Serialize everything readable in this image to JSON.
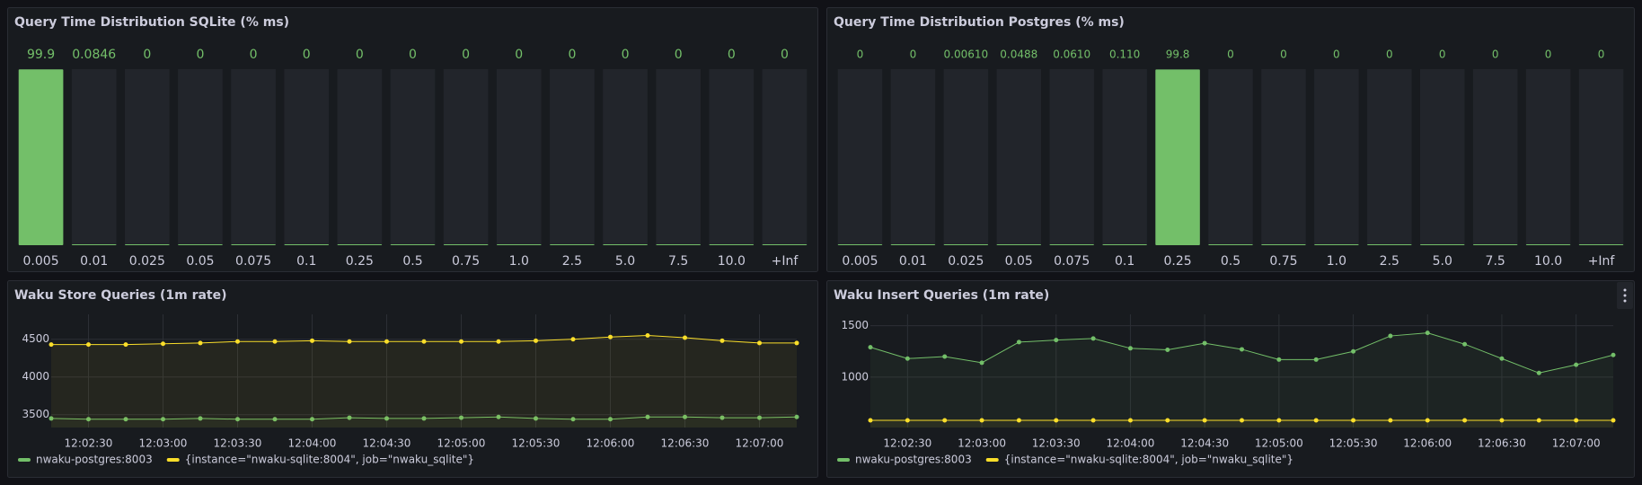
{
  "chart_data": [
    {
      "type": "bar",
      "title": "Query Time Distribution SQLite (% ms)",
      "categories": [
        "0.005",
        "0.01",
        "0.025",
        "0.05",
        "0.075",
        "0.1",
        "0.25",
        "0.5",
        "0.75",
        "1.0",
        "2.5",
        "5.0",
        "7.5",
        "10.0",
        "+Inf"
      ],
      "values": [
        99.9,
        0.0846,
        0,
        0,
        0,
        0,
        0,
        0,
        0,
        0,
        0,
        0,
        0,
        0,
        0
      ],
      "color": "#73bf69",
      "ylim": [
        0,
        100
      ]
    },
    {
      "type": "bar",
      "title": "Query Time Distribution Postgres (% ms)",
      "categories": [
        "0.005",
        "0.01",
        "0.025",
        "0.05",
        "0.075",
        "0.1",
        "0.25",
        "0.5",
        "0.75",
        "1.0",
        "2.5",
        "5.0",
        "7.5",
        "10.0",
        "+Inf"
      ],
      "values": [
        0,
        0,
        0.0061,
        0.0488,
        0.061,
        0.11,
        99.8,
        0,
        0,
        0,
        0,
        0,
        0,
        0,
        0
      ],
      "value_labels": [
        "0",
        "0",
        "0.00610",
        "0.0488",
        "0.0610",
        "0.110",
        "99.8",
        "0",
        "0",
        "0",
        "0",
        "0",
        "0",
        "0",
        "0"
      ],
      "color": "#73bf69",
      "ylim": [
        0,
        100
      ]
    },
    {
      "type": "line",
      "title": "Waku Store Queries (1m rate)",
      "x": [
        "12:02:15",
        "12:02:30",
        "12:02:45",
        "12:03:00",
        "12:03:15",
        "12:03:30",
        "12:03:45",
        "12:04:00",
        "12:04:15",
        "12:04:30",
        "12:04:45",
        "12:05:00",
        "12:05:15",
        "12:05:30",
        "12:05:45",
        "12:06:00",
        "12:06:15",
        "12:06:30",
        "12:06:45",
        "12:07:00",
        "12:07:15"
      ],
      "xlim": [
        "12:02:15",
        "12:07:15"
      ],
      "xticks": [
        "12:02:30",
        "12:03:00",
        "12:03:30",
        "12:04:00",
        "12:04:30",
        "12:05:00",
        "12:05:30",
        "12:06:00",
        "12:06:30",
        "12:07:00"
      ],
      "ylim": [
        3330,
        4830
      ],
      "yticks": [
        3500,
        4000,
        4500
      ],
      "grid": true,
      "series": [
        {
          "name": "nwaku-postgres:8003",
          "color": "#73bf69",
          "values": [
            3450,
            3440,
            3440,
            3440,
            3450,
            3440,
            3440,
            3440,
            3460,
            3450,
            3450,
            3460,
            3470,
            3450,
            3440,
            3440,
            3470,
            3470,
            3460,
            3460,
            3470
          ]
        },
        {
          "name": "{instance=\"nwaku-sqlite:8004\", job=\"nwaku_sqlite\"}",
          "color": "#fade2a",
          "values": [
            4430,
            4430,
            4430,
            4440,
            4450,
            4470,
            4470,
            4480,
            4470,
            4470,
            4470,
            4470,
            4470,
            4480,
            4500,
            4530,
            4550,
            4520,
            4480,
            4450,
            4450
          ]
        }
      ]
    },
    {
      "type": "line",
      "title": "Waku Insert Queries (1m rate)",
      "x": [
        "12:02:15",
        "12:02:30",
        "12:02:45",
        "12:03:00",
        "12:03:15",
        "12:03:30",
        "12:03:45",
        "12:04:00",
        "12:04:15",
        "12:04:30",
        "12:04:45",
        "12:05:00",
        "12:05:15",
        "12:05:30",
        "12:05:45",
        "12:06:00",
        "12:06:15",
        "12:06:30",
        "12:06:45",
        "12:07:00",
        "12:07:15"
      ],
      "xlim": [
        "12:02:15",
        "12:07:15"
      ],
      "xticks": [
        "12:02:30",
        "12:03:00",
        "12:03:30",
        "12:04:00",
        "12:04:30",
        "12:05:00",
        "12:05:30",
        "12:06:00",
        "12:06:30",
        "12:07:00"
      ],
      "ylim": [
        510,
        1610
      ],
      "yticks": [
        1000,
        1500
      ],
      "grid": true,
      "series": [
        {
          "name": "nwaku-postgres:8003",
          "color": "#73bf69",
          "values": [
            1290,
            1180,
            1200,
            1140,
            1340,
            1360,
            1375,
            1280,
            1265,
            1330,
            1270,
            1170,
            1170,
            1250,
            1400,
            1430,
            1320,
            1180,
            1040,
            1120,
            1215
          ]
        },
        {
          "name": "{instance=\"nwaku-sqlite:8004\", job=\"nwaku_sqlite\"}",
          "color": "#fade2a",
          "values": [
            580,
            580,
            580,
            580,
            580,
            580,
            580,
            580,
            580,
            580,
            580,
            580,
            580,
            580,
            580,
            580,
            580,
            580,
            580,
            580,
            580
          ]
        }
      ]
    }
  ]
}
